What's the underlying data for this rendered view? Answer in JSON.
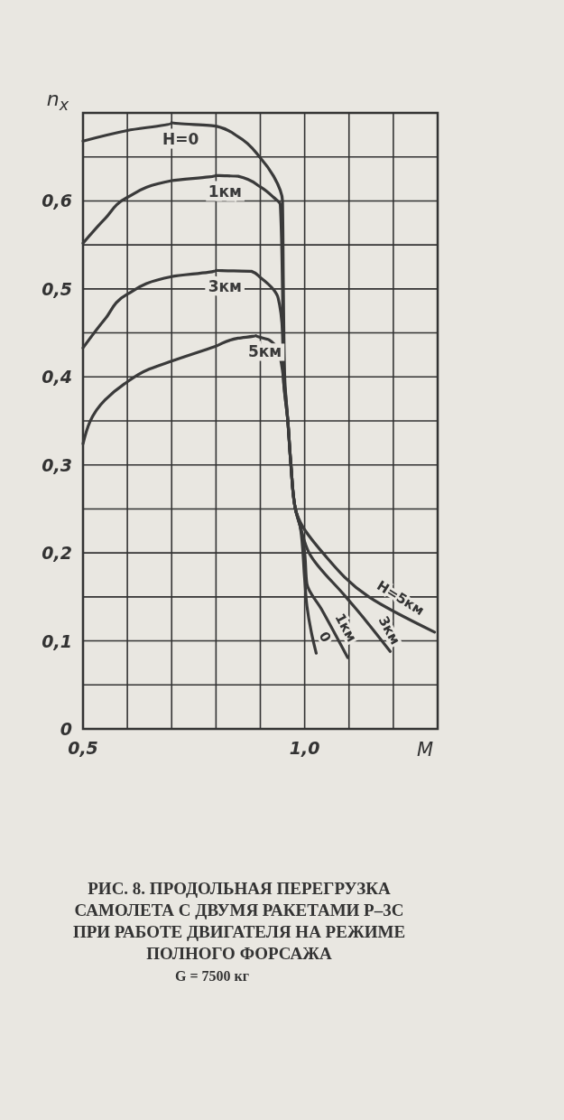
{
  "chart_data": {
    "type": "line",
    "title": "РИС. 8. ПРОДОЛЬНАЯ ПЕРЕГРУЗКА САМОЛЕТА С ДВУМЯ РАКЕТАМИ Р–3С ПРИ РАБОТЕ ДВИГАТЕЛЯ НА РЕЖИМЕ ПОЛНОГО ФОРСАЖА",
    "subtitle": "G = 7500 кг",
    "xlabel": "M",
    "ylabel": "n$_{x}$",
    "xlim": [
      0.5,
      1.3
    ],
    "ylim": [
      0,
      0.7
    ],
    "xticks": [
      {
        "value": 0.5,
        "label": "0,5"
      },
      {
        "value": 0.6,
        "label": null
      },
      {
        "value": 0.7,
        "label": null
      },
      {
        "value": 0.8,
        "label": null
      },
      {
        "value": 0.9,
        "label": null
      },
      {
        "value": 1.0,
        "label": "1,0"
      },
      {
        "value": 1.1,
        "label": null
      },
      {
        "value": 1.2,
        "label": null
      },
      {
        "value": 1.3,
        "label": null
      }
    ],
    "yticks": [
      0,
      {
        "value": 0.05,
        "label": null
      },
      {
        "value": 0.1,
        "label": "0,1"
      },
      {
        "value": 0.15,
        "label": null
      },
      {
        "value": 0.2,
        "label": "0,2"
      },
      {
        "value": 0.25,
        "label": null
      },
      {
        "value": 0.3,
        "label": "0,3"
      },
      {
        "value": 0.35,
        "label": null
      },
      {
        "value": 0.4,
        "label": "0,4"
      },
      {
        "value": 0.45,
        "label": null
      },
      {
        "value": 0.5,
        "label": "0,5"
      },
      {
        "value": 0.55,
        "label": null
      },
      {
        "value": 0.6,
        "label": "0,6"
      },
      {
        "value": 0.65,
        "label": null
      },
      {
        "value": 0.7,
        "label": null
      }
    ],
    "grid": true,
    "marker": "none",
    "line_style": "solid",
    "series": [
      {
        "name": "H=0",
        "color": "#3a3a3a",
        "x": [
          0.5,
          0.6,
          0.7,
          0.8,
          0.85,
          0.9,
          0.93,
          0.95,
          0.952,
          0.955,
          0.962,
          0.969,
          0.979,
          0.99,
          1.0,
          1.005,
          1.015,
          1.026
        ],
        "values": [
          0.668,
          0.68,
          0.689,
          0.685,
          0.673,
          0.649,
          0.628,
          0.6,
          0.5,
          0.4,
          0.35,
          0.3,
          0.25,
          0.23,
          0.17,
          0.14,
          0.11,
          0.086
        ]
      },
      {
        "name": "1км",
        "color": "#3a3a3a",
        "x": [
          0.5,
          0.55,
          0.6,
          0.7,
          0.8,
          0.85,
          0.9,
          0.93,
          0.945,
          0.95,
          0.952,
          0.962,
          0.969,
          0.979,
          0.99,
          1.0,
          1.005,
          1.038,
          1.097
        ],
        "values": [
          0.552,
          0.58,
          0.604,
          0.623,
          0.629,
          0.628,
          0.616,
          0.604,
          0.596,
          0.5,
          0.4,
          0.35,
          0.3,
          0.25,
          0.23,
          0.2,
          0.165,
          0.136,
          0.081
        ]
      },
      {
        "name": "3км",
        "color": "#3a3a3a",
        "x": [
          0.5,
          0.55,
          0.6,
          0.7,
          0.8,
          0.88,
          0.9,
          0.93,
          0.94,
          0.95,
          0.952,
          0.962,
          0.969,
          0.979,
          0.99,
          1.01,
          1.093,
          1.138,
          1.193
        ],
        "values": [
          0.433,
          0.466,
          0.494,
          0.514,
          0.521,
          0.52,
          0.513,
          0.499,
          0.49,
          0.45,
          0.4,
          0.35,
          0.3,
          0.25,
          0.23,
          0.2,
          0.15,
          0.123,
          0.088
        ]
      },
      {
        "name": "5км",
        "color": "#3a3a3a",
        "x": [
          0.5,
          0.55,
          0.593,
          0.65,
          0.7,
          0.8,
          0.85,
          0.89,
          0.92,
          0.94,
          0.952,
          0.962,
          0.969,
          0.979,
          0.99,
          1.041,
          1.145,
          1.293
        ],
        "values": [
          0.324,
          0.374,
          0.392,
          0.409,
          0.418,
          0.435,
          0.444,
          0.447,
          0.442,
          0.43,
          0.4,
          0.35,
          0.3,
          0.25,
          0.235,
          0.2,
          0.15,
          0.11
        ]
      }
    ],
    "annotations": [
      "H=5км",
      "3км",
      "1км",
      "0"
    ]
  }
}
